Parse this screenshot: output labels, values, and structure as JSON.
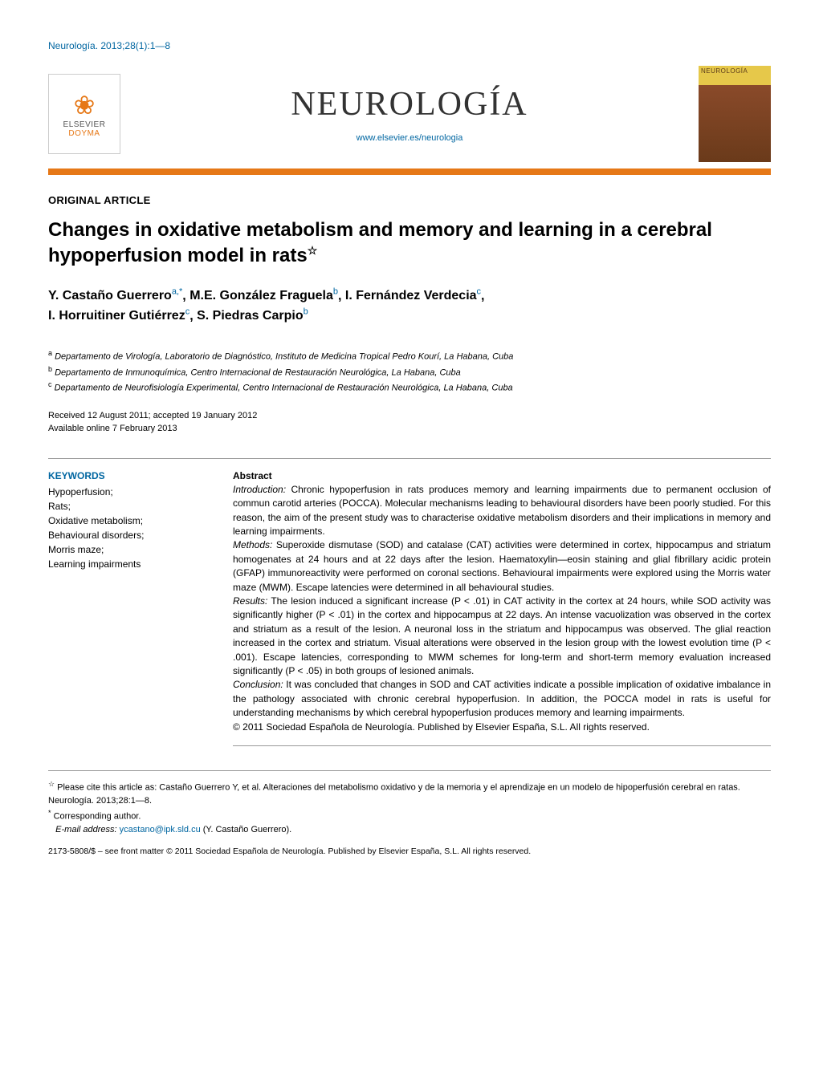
{
  "citation_top": "Neurología. 2013;28(1):1—8",
  "logo": {
    "elsevier": "ELSEVIER",
    "doyma": "DOYMA"
  },
  "journal": {
    "title": "NEUROLOGÍA",
    "url": "www.elsevier.es/neurologia",
    "cover_label": "NEUROLOGÍA"
  },
  "article_type": "ORIGINAL ARTICLE",
  "title": "Changes in oxidative metabolism and memory and learning in a cerebral hypoperfusion model in rats",
  "title_star": "☆",
  "authors": [
    {
      "name": "Y. Castaño Guerrero",
      "sup": "a,*"
    },
    {
      "name": "M.E. González Fraguela",
      "sup": "b"
    },
    {
      "name": "I. Fernández Verdecia",
      "sup": "c"
    },
    {
      "name": "I. Horruitiner Gutiérrez",
      "sup": "c"
    },
    {
      "name": "S. Piedras Carpio",
      "sup": "b"
    }
  ],
  "affiliations": [
    {
      "sup": "a",
      "text": "Departamento de Virología, Laboratorio de Diagnóstico, Instituto de Medicina Tropical Pedro Kourí, La Habana, Cuba"
    },
    {
      "sup": "b",
      "text": "Departamento de Inmunoquímica, Centro Internacional de Restauración Neurológica, La Habana, Cuba"
    },
    {
      "sup": "c",
      "text": "Departamento de Neurofisiología Experimental, Centro Internacional de Restauración Neurológica, La Habana, Cuba"
    }
  ],
  "dates": {
    "received_accepted": "Received 12 August 2011; accepted 19 January 2012",
    "online": "Available online 7 February 2013"
  },
  "keywords": {
    "heading": "KEYWORDS",
    "list": "Hypoperfusion;\nRats;\nOxidative metabolism;\nBehavioural disorders;\nMorris maze;\nLearning impairments"
  },
  "abstract": {
    "heading": "Abstract",
    "sections": [
      {
        "label": "Introduction:",
        "text": " Chronic hypoperfusion in rats produces memory and learning impairments due to permanent occlusion of commun carotid arteries (POCCA). Molecular mechanisms leading to behavioural disorders have been poorly studied. For this reason, the aim of the present study was to characterise oxidative metabolism disorders and their implications in memory and learning impairments."
      },
      {
        "label": "Methods:",
        "text": " Superoxide dismutase (SOD) and catalase (CAT) activities were determined in cortex, hippocampus and striatum homogenates at 24 hours and at 22 days after the lesion. Haematoxylin—eosin staining and glial fibrillary acidic protein (GFAP) immunoreactivity were performed on coronal sections. Behavioural impairments were explored using the Morris water maze (MWM). Escape latencies were determined in all behavioural studies."
      },
      {
        "label": "Results:",
        "text": " The lesion induced a significant increase (P < .01) in CAT activity in the cortex at 24 hours, while SOD activity was significantly higher (P < .01) in the cortex and hippocampus at 22 days. An intense vacuolization was observed in the cortex and striatum as a result of the lesion. A neuronal loss in the striatum and hippocampus was observed. The glial reaction increased in the cortex and striatum. Visual alterations were observed in the lesion group with the lowest evolution time (P < .001). Escape latencies, corresponding to MWM schemes for long-term and short-term memory evaluation increased significantly (P < .05) in both groups of lesioned animals."
      },
      {
        "label": "Conclusion:",
        "text": " It was concluded that changes in SOD and CAT activities indicate a possible implication of oxidative imbalance in the pathology associated with chronic cerebral hypoperfusion. In addition, the POCCA model in rats is useful for understanding mechanisms by which cerebral hypoperfusion produces memory and learning impairments."
      }
    ],
    "copyright": "© 2011 Sociedad Española de Neurología. Published by Elsevier España, S.L. All rights reserved."
  },
  "footnotes": {
    "cite_as_sup": "☆",
    "cite_as": " Please cite this article as: Castaño Guerrero Y, et al. Alteraciones del metabolismo oxidativo y de la memoria y el aprendizaje en un modelo de hipoperfusión cerebral en ratas. Neurología. 2013;28:1—8.",
    "corr_sup": "*",
    "corr": " Corresponding author.",
    "email_label": "E-mail address: ",
    "email": "ycastano@ipk.sld.cu",
    "email_author": " (Y. Castaño Guerrero)."
  },
  "bottom_copyright": "2173-5808/$ – see front matter © 2011 Sociedad Española de Neurología. Published by Elsevier España, S.L. All rights reserved.",
  "colors": {
    "accent_orange": "#e67817",
    "link_blue": "#0066a1",
    "text": "#000000",
    "rule": "#999999"
  }
}
